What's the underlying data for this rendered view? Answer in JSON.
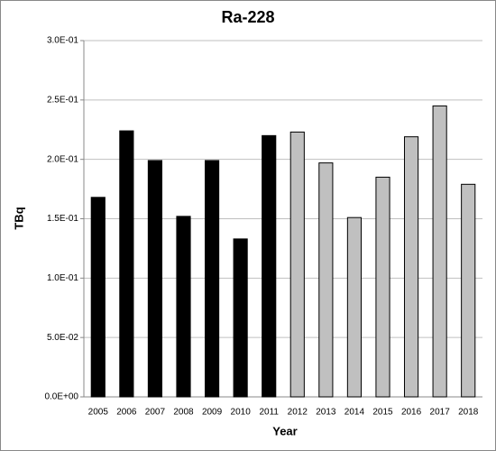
{
  "chart_data": {
    "type": "bar",
    "title": "Ra-228",
    "x_label": "Year",
    "y_label": "TBq",
    "categories": [
      "2005",
      "2006",
      "2007",
      "2008",
      "2009",
      "2010",
      "2011",
      "2012",
      "2013",
      "2014",
      "2015",
      "2016",
      "2017",
      "2018"
    ],
    "values": [
      0.168,
      0.224,
      0.199,
      0.152,
      0.199,
      0.133,
      0.22,
      0.223,
      0.197,
      0.151,
      0.185,
      0.219,
      0.245,
      0.179
    ],
    "colors": [
      "#000000",
      "#000000",
      "#000000",
      "#000000",
      "#000000",
      "#000000",
      "#000000",
      "#c0c0c0",
      "#c0c0c0",
      "#c0c0c0",
      "#c0c0c0",
      "#c0c0c0",
      "#c0c0c0",
      "#c0c0c0"
    ],
    "ylim": [
      0,
      0.3
    ],
    "yticks": [
      {
        "value": 0,
        "label": "0.0E+00"
      },
      {
        "value": 0.05,
        "label": "5.0E-02"
      },
      {
        "value": 0.1,
        "label": "1.0E-01"
      },
      {
        "value": 0.15,
        "label": "1.5E-01"
      },
      {
        "value": 0.2,
        "label": "2.0E-01"
      },
      {
        "value": 0.25,
        "label": "2.5E-01"
      },
      {
        "value": 0.3,
        "label": "3.0E-01"
      }
    ],
    "grid": true
  }
}
